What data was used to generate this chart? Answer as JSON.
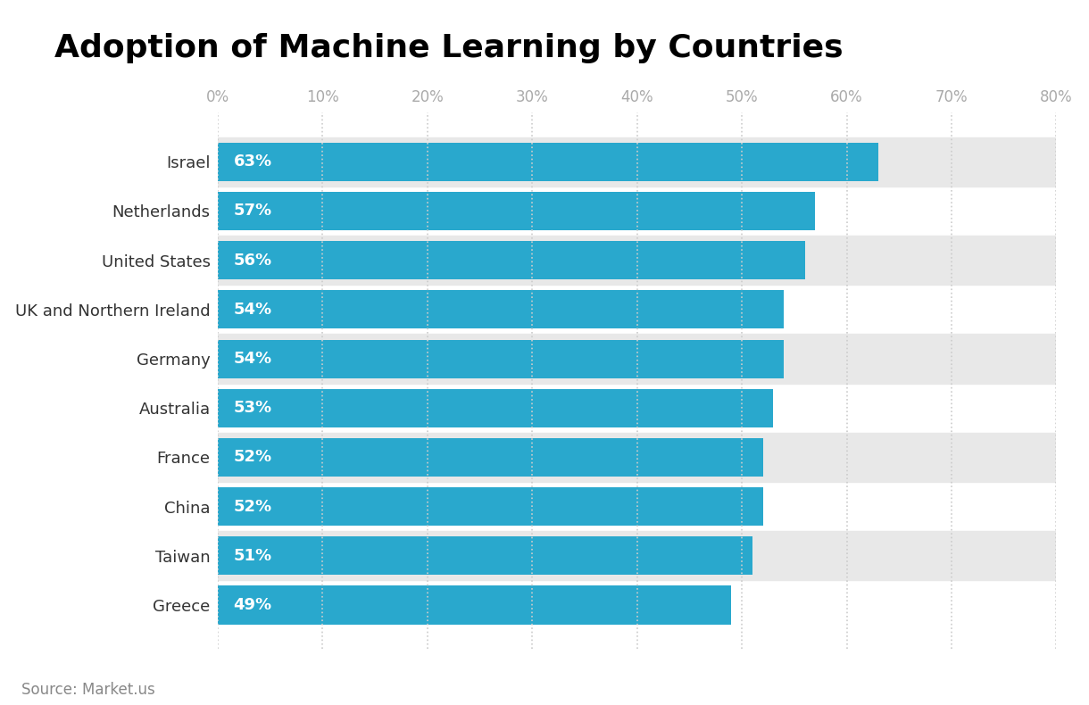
{
  "title": "Adoption of Machine Learning by Countries",
  "categories": [
    "Israel",
    "Netherlands",
    "United States",
    "UK and Northern Ireland",
    "Germany",
    "Australia",
    "France",
    "China",
    "Taiwan",
    "Greece"
  ],
  "values": [
    63,
    57,
    56,
    54,
    54,
    53,
    52,
    52,
    51,
    49
  ],
  "bar_color": "#29a8cd",
  "label_color": "#ffffff",
  "label_fontsize": 13,
  "title_fontsize": 26,
  "tick_fontsize": 12,
  "xlim": [
    0,
    80
  ],
  "xticks": [
    0,
    10,
    20,
    30,
    40,
    50,
    60,
    70,
    80
  ],
  "xtick_labels": [
    "0%",
    "10%",
    "20%",
    "30%",
    "40%",
    "50%",
    "60%",
    "70%",
    "80%"
  ],
  "source_text": "Source: Market.us",
  "source_color": "#888888",
  "source_fontsize": 12,
  "background_color": "#ffffff",
  "grid_color": "#cccccc",
  "alt_band_color": "#e8e8e8",
  "title_color": "#000000",
  "ytick_color": "#333333",
  "bar_height": 0.78
}
